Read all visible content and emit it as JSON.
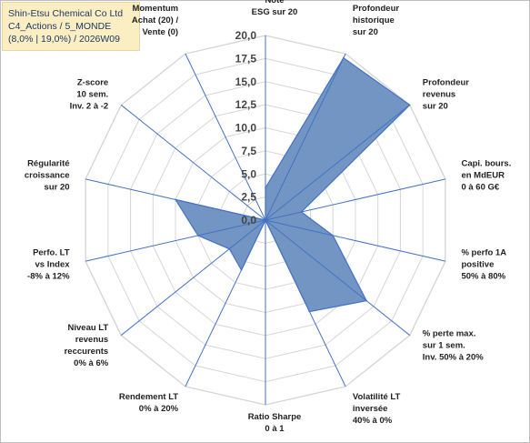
{
  "header": {
    "company": "Shin-Etsu Chemical Co Ltd",
    "portfolio": "C4_Actions / 5_MONDE",
    "params": "(8,0% | 19,0%) / 2026W09"
  },
  "chart_data": {
    "type": "radar",
    "rmin": 0,
    "rmax": 20,
    "tick_step": 2.5,
    "tick_labels": [
      "0,0",
      "2,5",
      "5,0",
      "7,5",
      "10,0",
      "12,5",
      "15,0",
      "17,5",
      "20,0"
    ],
    "grid": true,
    "fill_color": "#6b8fc0",
    "line_color": "#4472c4",
    "axes": [
      {
        "label": [
          "Note",
          "ESG sur 20"
        ],
        "value": 3.5
      },
      {
        "label": [
          "Profondeur",
          "historique",
          "sur 20"
        ],
        "value": 19.5
      },
      {
        "label": [
          "Profondeur",
          "revenus",
          "sur 20"
        ],
        "value": 20.0
      },
      {
        "label": [
          "Capi. bours.",
          "en MdEUR",
          "0 à 60 G€"
        ],
        "value": 4.0
      },
      {
        "label": [
          "% perfo 1A",
          "positive",
          "50% à 80%"
        ],
        "value": 7.5
      },
      {
        "label": [
          "% perte max.",
          "sur 1 sem.",
          "Inv. 50% à 20%"
        ],
        "value": 14.0
      },
      {
        "label": [
          "Volatilité LT",
          "inversée",
          "40% à 0%"
        ],
        "value": 11.0
      },
      {
        "label": [
          "Ratio Sharpe",
          "0 à 1"
        ],
        "value": 0.0
      },
      {
        "label": [
          "Rendement LT",
          "0% à 20%"
        ],
        "value": 6.0
      },
      {
        "label": [
          "Niveau LT",
          "revenus",
          "reccurents",
          "0% à 6%"
        ],
        "value": 5.0
      },
      {
        "label": [
          "Perfo. LT",
          "vs Index",
          "-8% à 12%"
        ],
        "value": 7.5
      },
      {
        "label": [
          "Régularité",
          "croissance",
          "sur 20"
        ],
        "value": 10.0
      },
      {
        "label": [
          "Z-score",
          "10 sem.",
          "Inv. 2 à -2"
        ],
        "value": 0.0
      },
      {
        "label": [
          "Momentum",
          "Achat (20) /",
          "Vente (0)"
        ],
        "value": 0.0
      }
    ]
  }
}
